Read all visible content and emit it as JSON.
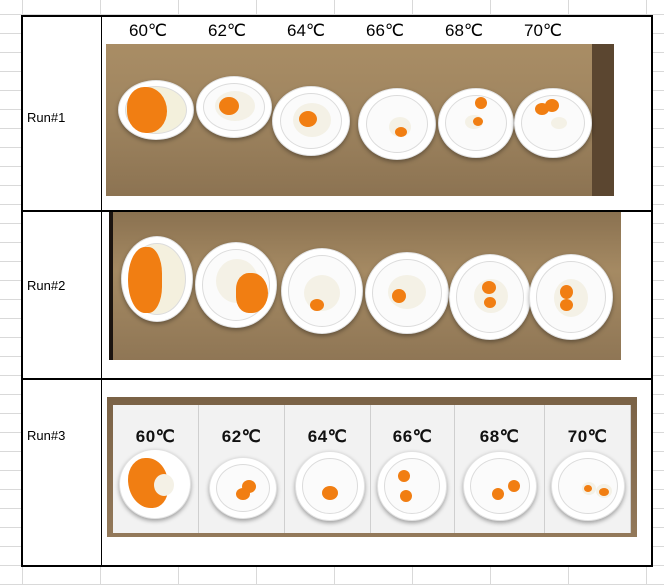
{
  "temperatures": [
    "60℃",
    "62℃",
    "64℃",
    "66℃",
    "68℃",
    "70℃"
  ],
  "runs": [
    {
      "label": "Run#1"
    },
    {
      "label": "Run#2"
    },
    {
      "label": "Run#3"
    }
  ],
  "cards": [
    "60℃",
    "62℃",
    "64℃",
    "66℃",
    "68℃",
    "70℃"
  ],
  "colors": {
    "yolk": "#f17e12",
    "wood": "#a08660",
    "grid": "#d9d9d9"
  }
}
